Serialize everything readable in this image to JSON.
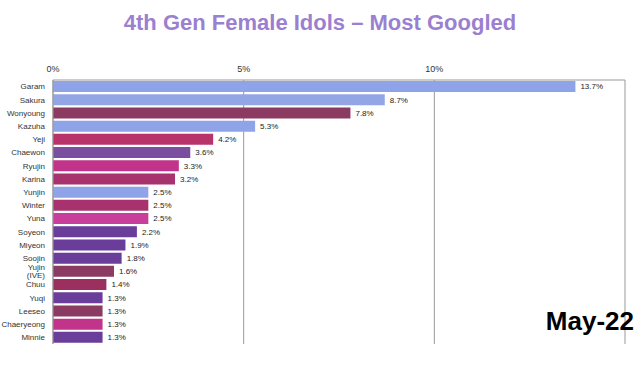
{
  "chart_data": {
    "type": "bar",
    "title": "4th Gen Female Idols – Most Googled",
    "orientation": "horizontal",
    "categories": [
      "Garam",
      "Sakura",
      "Wonyoung",
      "Kazuha",
      "Yeji",
      "Chaewon",
      "Ryujin",
      "Karina",
      "Yunjin",
      "Winter",
      "Yuna",
      "Soyeon",
      "Miyeon",
      "Soojin",
      "Yujin (IVE)",
      "Chuu",
      "Yuqi",
      "Leeseo",
      "Chaeryeong",
      "Minnie"
    ],
    "values": [
      13.7,
      8.7,
      7.8,
      5.3,
      4.2,
      3.6,
      3.3,
      3.2,
      2.5,
      2.5,
      2.5,
      2.2,
      1.9,
      1.8,
      1.6,
      1.4,
      1.3,
      1.3,
      1.3,
      1.3
    ],
    "value_labels": [
      "13.7%",
      "8.7%",
      "7.8%",
      "5.3%",
      "4.2%",
      "3.6%",
      "3.3%",
      "3.2%",
      "2.5%",
      "2.5%",
      "2.5%",
      "2.2%",
      "1.9%",
      "1.8%",
      "1.6%",
      "1.4%",
      "1.3%",
      "1.3%",
      "1.3%",
      "1.3%"
    ],
    "colors": [
      "#8fa3e8",
      "#92a6e6",
      "#8b3a62",
      "#8fa3e8",
      "#b8336a",
      "#7b4fa0",
      "#c2338a",
      "#a8326e",
      "#8fa3e8",
      "#a8326e",
      "#c83e9a",
      "#6a3d9a",
      "#6a3d9a",
      "#6a3d9a",
      "#8b3a62",
      "#9b3060",
      "#6a3d9a",
      "#8b3a62",
      "#c2338a",
      "#6a3d9a"
    ],
    "xlim": [
      0,
      15
    ],
    "xticks": [
      {
        "value": 0,
        "label": "0%"
      },
      {
        "value": 5,
        "label": "5%"
      },
      {
        "value": 10,
        "label": "10%"
      }
    ],
    "grid": true,
    "data_labels": true,
    "annotations": [
      "May-22"
    ]
  }
}
